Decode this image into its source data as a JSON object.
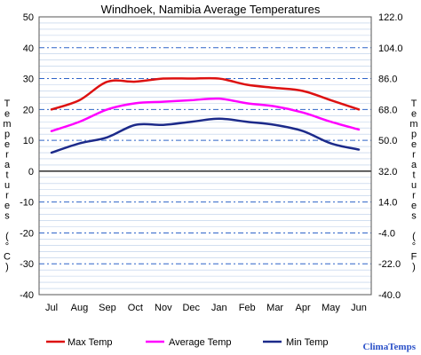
{
  "chart_data": {
    "type": "line",
    "title": "Windhoek, Namibia Average Temperatures",
    "categories": [
      "Jul",
      "Aug",
      "Sep",
      "Oct",
      "Nov",
      "Dec",
      "Jan",
      "Feb",
      "Mar",
      "Apr",
      "May",
      "Jun"
    ],
    "ylabel_left": "Temperatures (°C)",
    "ylabel_right": "Temperatures (°F)",
    "ylim_left": [
      -40,
      50
    ],
    "ylim_right": [
      -40,
      122
    ],
    "yticks_left": [
      "50",
      "40",
      "30",
      "20",
      "10",
      "0",
      "-10",
      "-20",
      "-30",
      "-40"
    ],
    "yticks_right": [
      "122.0",
      "104.0",
      "86.0",
      "68.0",
      "50.0",
      "32.0",
      "14.0",
      "-4.0",
      "-22.0",
      "-40.0"
    ],
    "grid": true,
    "legend_position": "bottom",
    "series": [
      {
        "name": "Max Temp",
        "color": "#dd1111",
        "values": [
          20.0,
          23.0,
          29.0,
          29.0,
          30.0,
          30.0,
          30.0,
          28.0,
          27.0,
          26.0,
          23.0,
          20.0
        ]
      },
      {
        "name": "Average Temp",
        "color": "#ff00ff",
        "values": [
          13.0,
          16.0,
          20.0,
          22.0,
          22.5,
          23.0,
          23.5,
          22.0,
          21.0,
          19.0,
          16.0,
          13.5
        ]
      },
      {
        "name": "Min Temp",
        "color": "#1c2a8a",
        "values": [
          6.0,
          9.0,
          11.0,
          15.0,
          15.0,
          16.0,
          17.0,
          16.0,
          15.0,
          13.0,
          9.0,
          7.0
        ]
      }
    ],
    "brand": "ClimaTemps"
  }
}
